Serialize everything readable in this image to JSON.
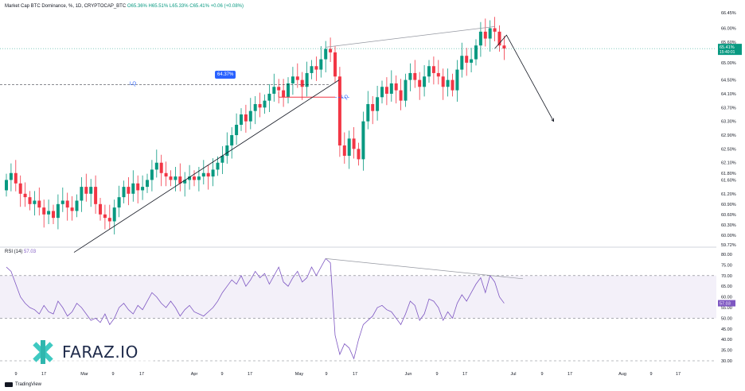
{
  "header": {
    "symbol": "Market Cap BTC Dominance, %, 1D, CRYPTOCAP_BTC",
    "open": "O65.36%",
    "high": "H65.51%",
    "low": "L65.33%",
    "close": "C65.41%",
    "change": "+0.06 (+0.08%)"
  },
  "rsi_header": {
    "label": "RSI (14)",
    "value": "57.03"
  },
  "watermark": {
    "brand": "FARAZ.IO"
  },
  "footer": {
    "tradingview": "TradingView"
  },
  "annotations": {
    "lq_left": "LQ",
    "lq_right": "LQ",
    "callout": "64.37%"
  },
  "price_badge": {
    "value": "65.41%",
    "timer": "15:40:01"
  },
  "rsi_badge": {
    "value": "57.03"
  },
  "colors": {
    "up": "#089981",
    "down": "#f23645",
    "rsi": "#7e57c2",
    "callout": "#2962ff"
  },
  "chart_data": [
    {
      "type": "candlestick",
      "title": "Market Cap BTC Dominance, %, 1D, CRYPTOCAP_BTC",
      "ylim": [
        59.72,
        66.45
      ],
      "y_ticks": [
        "66.45%",
        "66.00%",
        "65.60%",
        "65.40%",
        "65.00%",
        "64.50%",
        "64.10%",
        "63.70%",
        "63.30%",
        "62.90%",
        "62.50%",
        "62.10%",
        "61.80%",
        "61.60%",
        "61.20%",
        "60.90%",
        "60.60%",
        "60.30%",
        "60.00%",
        "59.72%"
      ],
      "x_ticks": [
        "9",
        "17",
        "Mar",
        "9",
        "17",
        "Apr",
        "9",
        "17",
        "May",
        "9",
        "17",
        "Jun",
        "9",
        "17",
        "Jul",
        "9",
        "17",
        "Aug",
        "9",
        "17"
      ],
      "close": [
        61.6,
        61.8,
        61.5,
        61.2,
        61.1,
        60.9,
        61.0,
        60.8,
        60.6,
        60.7,
        60.5,
        60.9,
        61.0,
        60.8,
        60.7,
        61.0,
        61.4,
        61.2,
        61.4,
        60.9,
        60.6,
        60.5,
        60.4,
        60.8,
        61.1,
        61.4,
        61.2,
        61.5,
        61.3,
        61.4,
        61.6,
        61.9,
        62.1,
        61.8,
        61.7,
        61.6,
        61.7,
        61.5,
        61.6,
        61.7,
        61.6,
        61.7,
        61.8,
        61.7,
        61.9,
        62.1,
        62.3,
        62.6,
        62.9,
        63.2,
        63.5,
        63.3,
        63.6,
        63.8,
        63.7,
        63.9,
        64.1,
        64.3,
        64.2,
        64.0,
        64.4,
        64.6,
        64.5,
        64.3,
        64.7,
        64.9,
        64.8,
        65.1,
        65.4,
        65.3,
        64.6,
        62.6,
        62.3,
        62.8,
        62.5,
        62.2,
        63.3,
        63.8,
        63.6,
        64.0,
        64.3,
        64.1,
        64.4,
        64.2,
        63.9,
        64.5,
        64.7,
        64.5,
        64.3,
        64.6,
        64.9,
        64.7,
        64.6,
        64.3,
        64.5,
        64.2,
        64.8,
        65.2,
        65.0,
        65.1,
        65.5,
        65.9,
        65.7,
        66.0,
        65.9,
        65.5,
        65.41
      ],
      "ohlc_source": "estimated",
      "lines": {
        "lq_level": 64.37,
        "trend_support": [
          [
            0,
            59.5
          ],
          [
            70,
            64.5
          ]
        ],
        "trend_resistance": [
          [
            68,
            65.45
          ],
          [
            104,
            66.05
          ]
        ],
        "projection": [
          [
            104,
            65.41
          ],
          [
            106,
            65.8
          ],
          [
            114,
            63.3
          ]
        ]
      }
    },
    {
      "type": "line",
      "title": "RSI (14)",
      "ylim": [
        30,
        80
      ],
      "y_ticks": [
        "80.00",
        "75.00",
        "70.00",
        "65.00",
        "60.00",
        "55.00",
        "50.00",
        "45.00",
        "40.00",
        "35.00",
        "30.00"
      ],
      "bands": [
        50,
        70
      ],
      "values": [
        74,
        72,
        66,
        60,
        57,
        55,
        54,
        52,
        56,
        53,
        52,
        58,
        55,
        51,
        53,
        57,
        55,
        52,
        49,
        50,
        48,
        52,
        47,
        50,
        55,
        57,
        54,
        52,
        56,
        54,
        58,
        62,
        60,
        57,
        55,
        58,
        55,
        51,
        54,
        56,
        53,
        52,
        51,
        53,
        55,
        58,
        62,
        65,
        68,
        66,
        70,
        65,
        68,
        72,
        69,
        71,
        66,
        70,
        74,
        67,
        65,
        69,
        72,
        67,
        69,
        74,
        70,
        74,
        78,
        76,
        42,
        33,
        38,
        36,
        31,
        40,
        47,
        49,
        51,
        55,
        56,
        54,
        53,
        50,
        47,
        52,
        58,
        56,
        49,
        52,
        59,
        58,
        55,
        49,
        53,
        50,
        57,
        61,
        58,
        62,
        66,
        69,
        62,
        70,
        67,
        60,
        57.03
      ],
      "divergence_line": [
        [
          68,
          78
        ],
        [
          110,
          68.5
        ]
      ]
    }
  ]
}
